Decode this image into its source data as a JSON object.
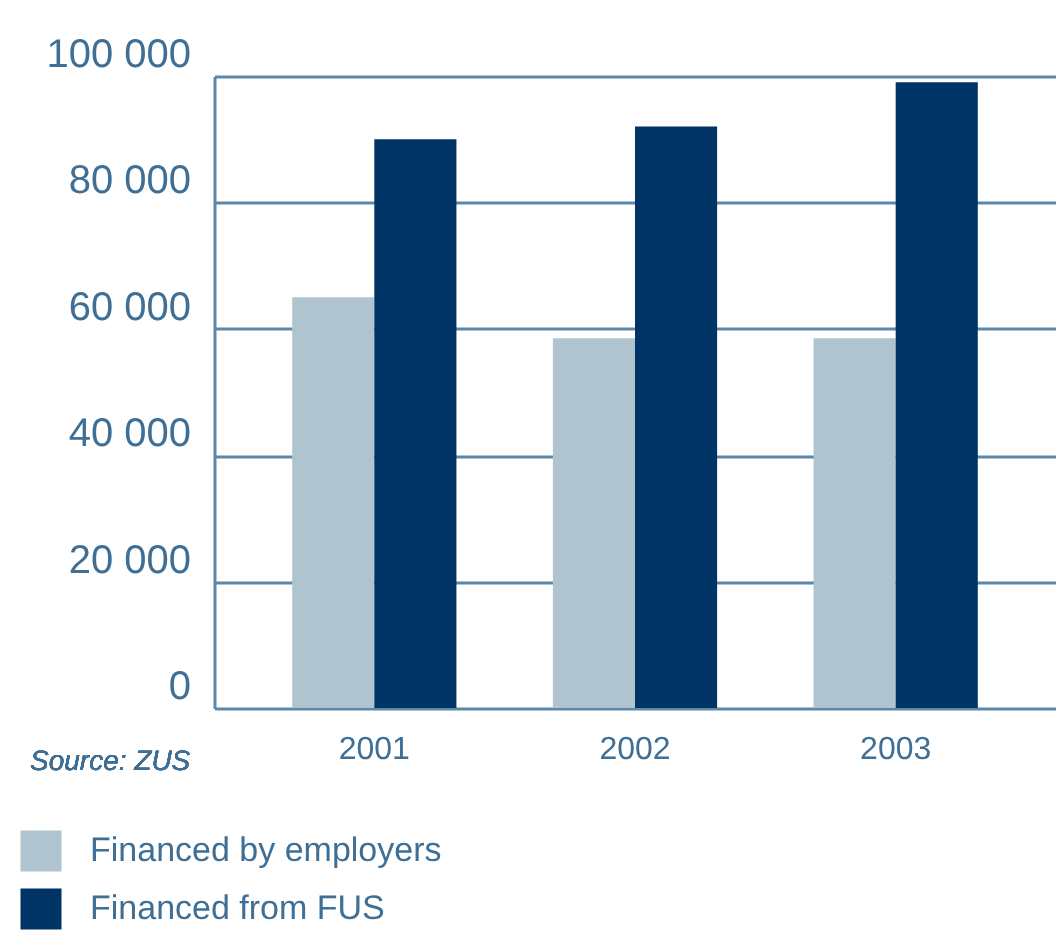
{
  "chart_data": {
    "type": "bar",
    "categories": [
      "2001",
      "2002",
      "2003"
    ],
    "series": [
      {
        "name": "Financed by employers",
        "color": "#afc4cf",
        "values": [
          65000,
          58500,
          58500
        ]
      },
      {
        "name": "Financed from FUS",
        "color": "#003366",
        "values": [
          90000,
          92000,
          99000
        ]
      }
    ],
    "ylim": [
      0,
      100000
    ],
    "yticks": [
      {
        "value": 0,
        "label": "0"
      },
      {
        "value": 20000,
        "label": "20 000"
      },
      {
        "value": 40000,
        "label": "40 000"
      },
      {
        "value": 60000,
        "label": "60 000"
      },
      {
        "value": 80000,
        "label": "80 000"
      },
      {
        "value": 100000,
        "label": "100 000"
      }
    ],
    "grid": "y",
    "legend": "bottom",
    "annotations": [
      "Source: ZUS"
    ]
  }
}
